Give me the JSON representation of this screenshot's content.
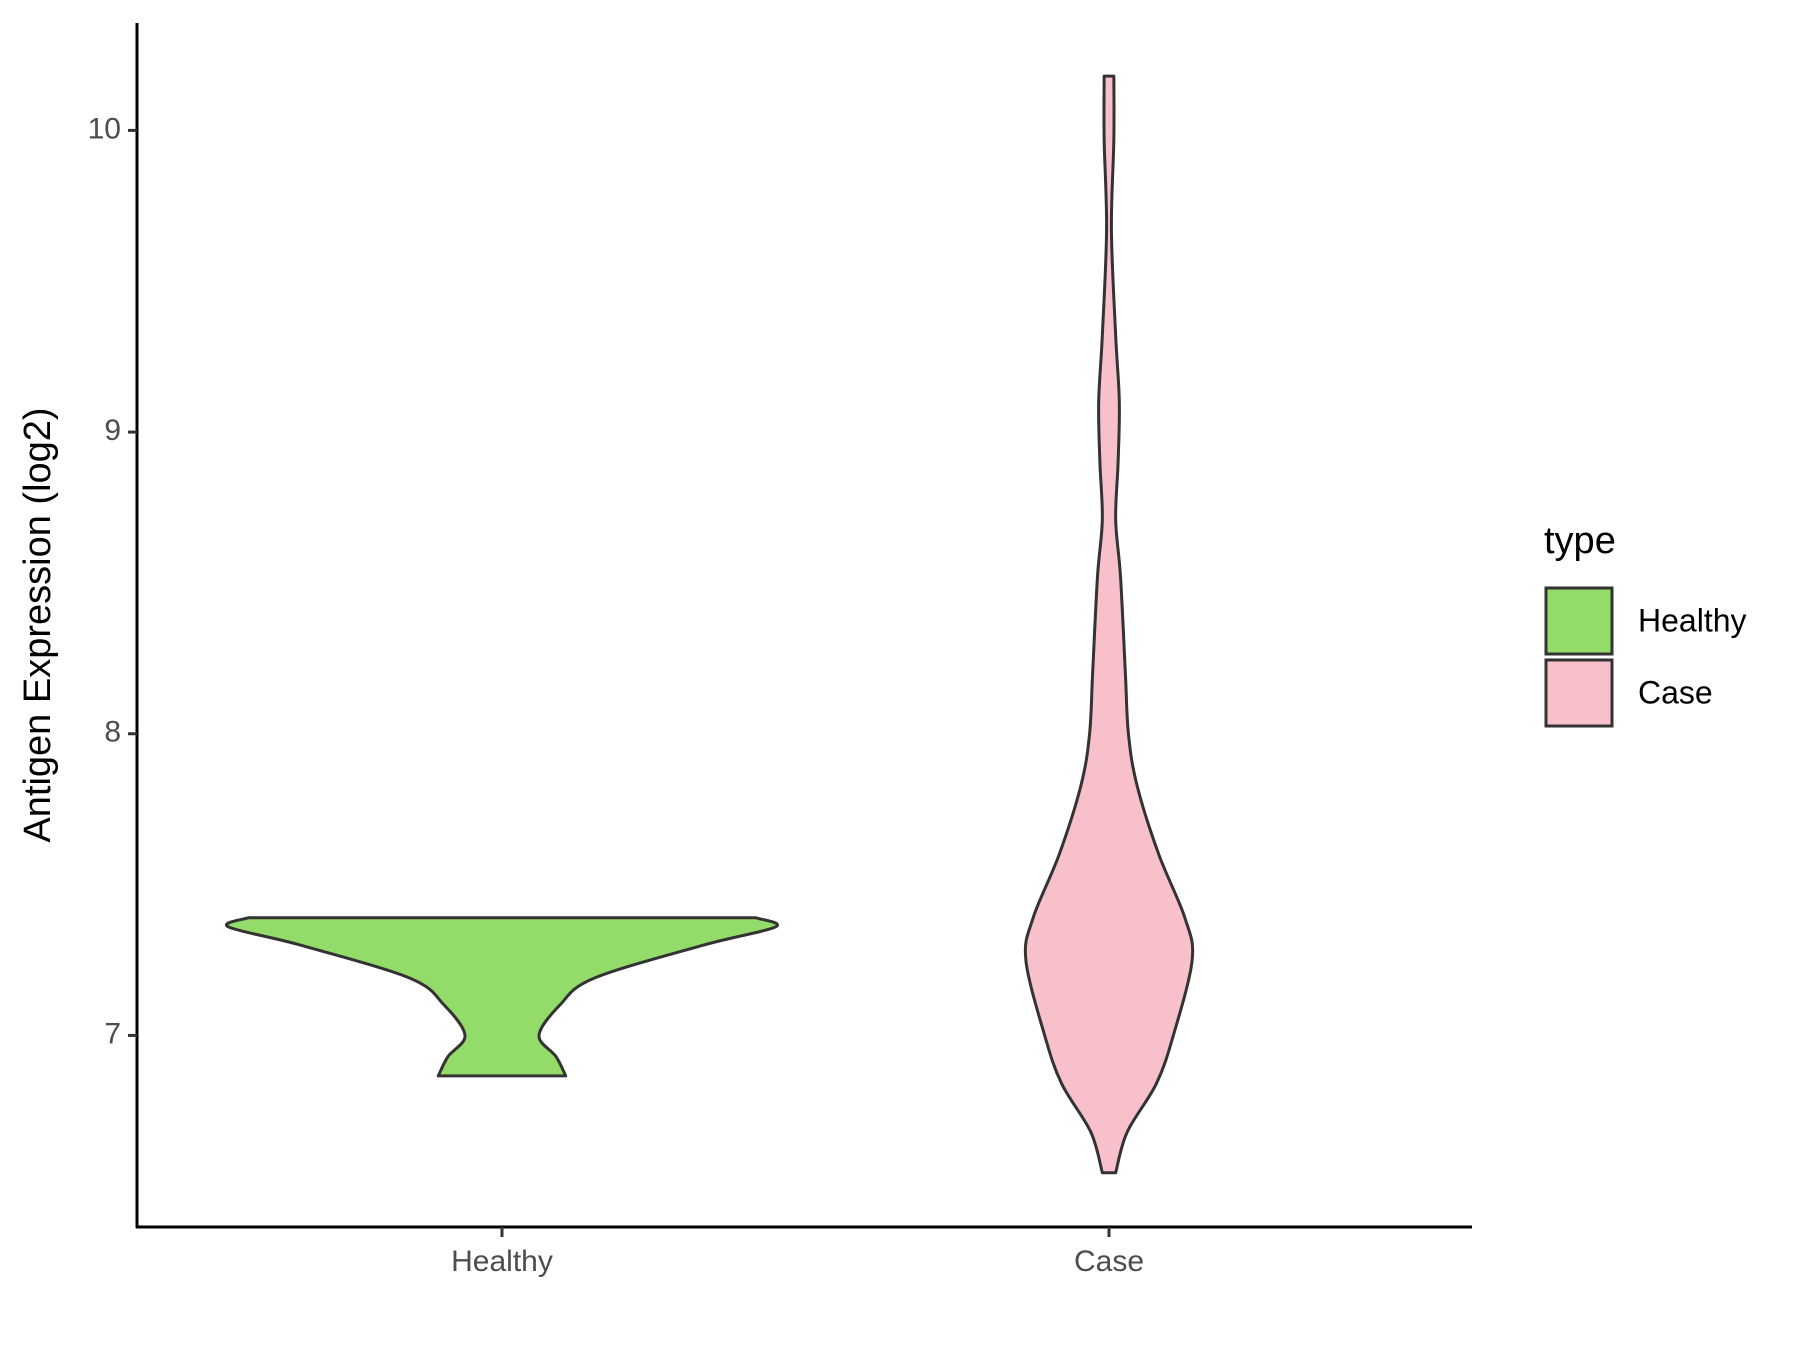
{
  "chart_data": {
    "type": "violin",
    "y_label": "Antigen Expression (log2)",
    "categories": [
      "Healthy",
      "Case"
    ],
    "legend_title": "type",
    "legend_position": "right",
    "ylim": [
      6.365,
      10.356
    ],
    "yticks": [
      7,
      8,
      9,
      10
    ],
    "grid": false,
    "series": [
      {
        "name": "Healthy",
        "color": "#93dc6a",
        "y": [
          6.866,
          6.93,
          7.0,
          7.1,
          7.19,
          7.3,
          7.36,
          7.39
        ],
        "half_width": [
          0.105,
          0.089,
          0.061,
          0.095,
          0.152,
          0.333,
          0.451,
          0.418
        ]
      },
      {
        "name": "Case",
        "color": "#f7c0cb",
        "y": [
          6.545,
          6.68,
          6.84,
          7.0,
          7.25,
          7.39,
          7.6,
          7.83,
          8.0,
          8.2,
          8.52,
          8.71,
          8.9,
          9.1,
          9.32,
          9.67,
          9.97,
          10.18
        ],
        "half_width": [
          0.011,
          0.03,
          0.078,
          0.106,
          0.137,
          0.125,
          0.082,
          0.046,
          0.032,
          0.027,
          0.019,
          0.011,
          0.015,
          0.017,
          0.011,
          0.004,
          0.008,
          0.008
        ]
      }
    ]
  }
}
